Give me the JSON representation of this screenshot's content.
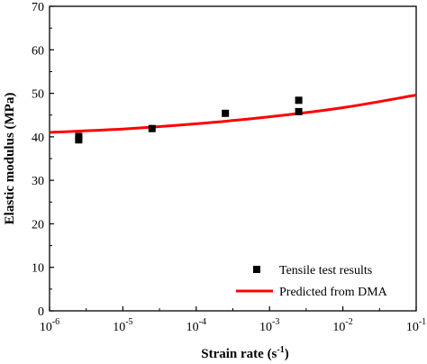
{
  "chart_data": {
    "type": "scatter",
    "xlabel": {
      "base": "Strain rate (s",
      "sup": "-1",
      "tail": ")"
    },
    "ylabel": "Elastic modulus (MPa)",
    "x_scale": "log",
    "xlim": [
      1e-06,
      0.1
    ],
    "ylim": [
      0,
      70
    ],
    "grid": false,
    "legend_position": "bottom-right",
    "x_ticks": [
      {
        "value": 1e-06,
        "base": "10",
        "exp": "-6"
      },
      {
        "value": 1e-05,
        "base": "10",
        "exp": "-5"
      },
      {
        "value": 0.0001,
        "base": "10",
        "exp": "-4"
      },
      {
        "value": 0.001,
        "base": "10",
        "exp": "-3"
      },
      {
        "value": 0.01,
        "base": "10",
        "exp": "-2"
      },
      {
        "value": 0.1,
        "base": "10",
        "exp": "-1"
      }
    ],
    "y_ticks": [
      0,
      10,
      20,
      30,
      40,
      50,
      60,
      70
    ],
    "series": [
      {
        "name": "Tensile test results",
        "kind": "scatter",
        "marker": "square",
        "color": "#000000",
        "points": [
          {
            "x": 2.5e-06,
            "y": 39.3
          },
          {
            "x": 2.5e-06,
            "y": 40.1
          },
          {
            "x": 2.5e-05,
            "y": 41.9
          },
          {
            "x": 0.00025,
            "y": 45.4
          },
          {
            "x": 0.0025,
            "y": 45.8
          },
          {
            "x": 0.0025,
            "y": 48.4
          }
        ]
      },
      {
        "name": "Predicted from DMA",
        "kind": "line",
        "color": "#ff0000",
        "points": [
          {
            "x": 1e-06,
            "y": 41.0
          },
          {
            "x": 1e-05,
            "y": 41.8
          },
          {
            "x": 0.0001,
            "y": 43.0
          },
          {
            "x": 0.001,
            "y": 44.6
          },
          {
            "x": 0.01,
            "y": 46.7
          },
          {
            "x": 0.1,
            "y": 49.6
          }
        ]
      }
    ]
  }
}
